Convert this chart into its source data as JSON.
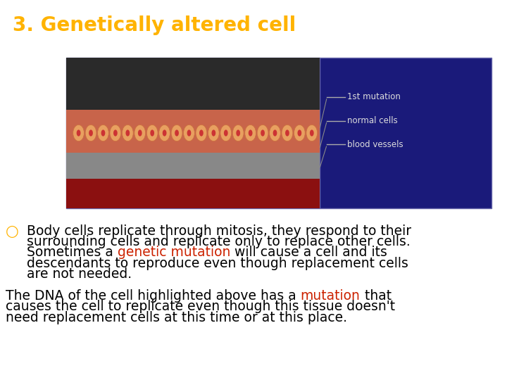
{
  "title": "3. Genetically altered cell",
  "title_color": "#FFB300",
  "title_bg_color": "#000000",
  "title_fontsize": 20,
  "body_bg_color": "#ffffff",
  "bullet_color": "#FFB300",
  "text_color": "#000000",
  "red_color": "#cc2200",
  "image_left_color": "#2a2a2a",
  "image_right_color": "#1a1a7a",
  "image_border_color": "#6666aa",
  "legend_items": [
    "1st mutation",
    "normal cells",
    "blood vessels"
  ],
  "bullet_line1": "Body cells replicate through mitosis, they respond to their",
  "bullet_line2": "surrounding cells and replicate only to replace other cells.",
  "bullet_line3a": "Sometimes a ",
  "bullet_line3b": "genetic mutation",
  "bullet_line3c": " will cause a cell and its",
  "bullet_line4": "descendants to reproduce even though replacement cells",
  "bullet_line5": "are not needed.",
  "para2_line1a": "The DNA of the cell highlighted above has a ",
  "para2_line1b": "mutation",
  "para2_line1c": " that",
  "para2_line2": "causes the cell to replicate even though this tissue doesn't",
  "para2_line3": "need replacement cells at this time or at this place.",
  "fontsize": 13.5,
  "font_family": "DejaVu Sans"
}
